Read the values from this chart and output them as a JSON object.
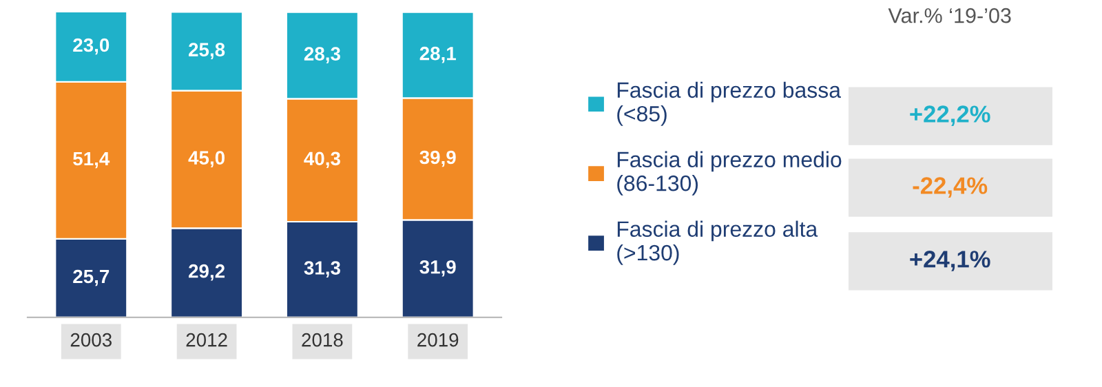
{
  "chart_data": {
    "type": "bar",
    "stacked": true,
    "categories": [
      "2003",
      "2012",
      "2018",
      "2019"
    ],
    "series": [
      {
        "name": "Fascia di prezzo alta\n(>130)",
        "color": "#1f3d73",
        "values": [
          25.7,
          29.2,
          31.3,
          31.9
        ],
        "value_labels": [
          "25,7",
          "29,2",
          "31,3",
          "31,9"
        ]
      },
      {
        "name": "Fascia di prezzo medio\n(86-130)",
        "color": "#f28a24",
        "values": [
          51.4,
          45.0,
          40.3,
          39.9
        ],
        "value_labels": [
          "51,4",
          "45,0",
          "40,3",
          "39,9"
        ]
      },
      {
        "name": "Fascia di prezzo bassa\n(<85)",
        "color": "#1fb1c9",
        "values": [
          23.0,
          25.8,
          28.3,
          28.1
        ],
        "value_labels": [
          "23,0",
          "25,8",
          "28,3",
          "28,1"
        ]
      }
    ],
    "legend": "right",
    "grid": false,
    "tick_labels": "x",
    "annotations": [
      "Var.% ‘19-’03",
      "+22,2%",
      "-22,4%",
      "+24,1%"
    ]
  }
}
